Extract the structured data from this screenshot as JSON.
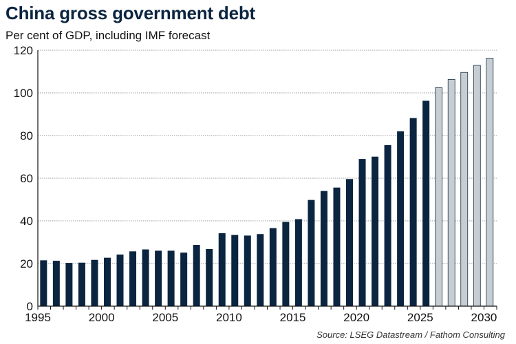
{
  "chart_data": {
    "type": "bar",
    "title": "China gross government debt",
    "subtitle": "Per cent of GDP, including IMF forecast",
    "source": "Source: LSEG Datastream / Fathom Consulting",
    "xlabel": "",
    "ylabel": "",
    "ylim": [
      0,
      120
    ],
    "yticks": [
      0,
      20,
      40,
      60,
      80,
      100,
      120
    ],
    "xlim": [
      1995,
      2031
    ],
    "xticks": [
      1995,
      2000,
      2005,
      2010,
      2015,
      2020,
      2025,
      2030
    ],
    "grid": true,
    "forecast_from": 2025,
    "colors": {
      "actual": "#0b2540",
      "forecast": "#c6ced3",
      "grid": "#9a9a9a",
      "axis": "#111111"
    },
    "categories": [
      1995,
      1996,
      1997,
      1998,
      1999,
      2000,
      2001,
      2002,
      2003,
      2004,
      2005,
      2006,
      2007,
      2008,
      2009,
      2010,
      2011,
      2012,
      2013,
      2014,
      2015,
      2016,
      2017,
      2018,
      2019,
      2020,
      2021,
      2022,
      2023,
      2024,
      2025,
      2026,
      2027,
      2028,
      2029,
      2030
    ],
    "values": [
      21.5,
      21.3,
      20.3,
      20.4,
      21.7,
      22.7,
      24.2,
      25.7,
      26.6,
      26.0,
      26.0,
      25.1,
      28.7,
      26.8,
      34.2,
      33.4,
      33.1,
      33.8,
      36.6,
      39.5,
      40.8,
      49.8,
      54.0,
      55.6,
      59.6,
      69.0,
      70.1,
      75.5,
      82.0,
      88.2,
      96.3,
      102.4,
      106.3,
      109.6,
      112.9,
      116.3
    ]
  }
}
